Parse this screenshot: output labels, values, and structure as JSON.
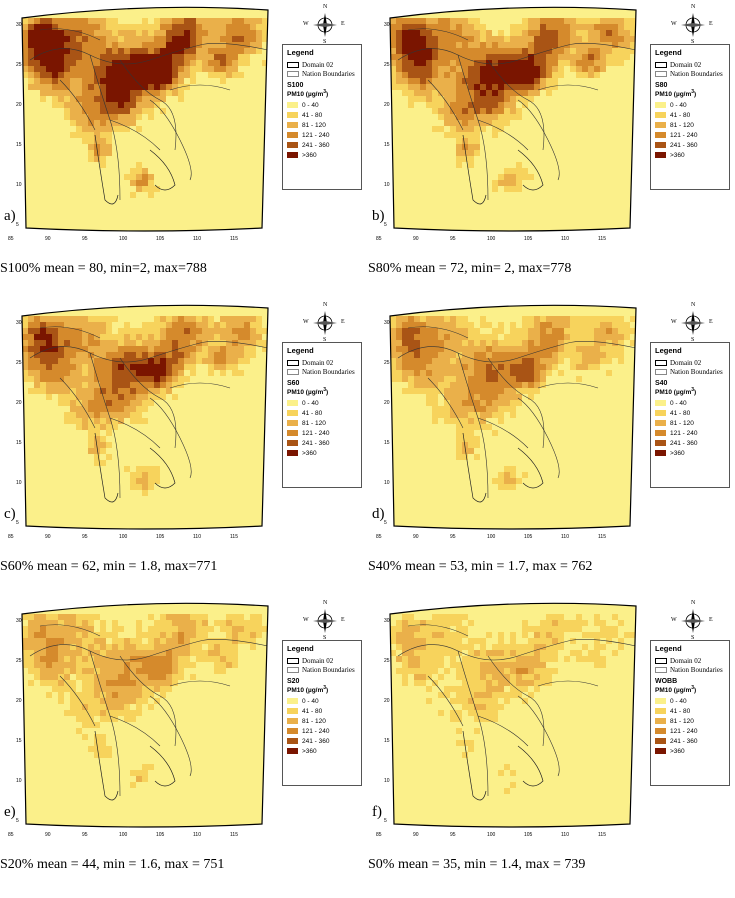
{
  "legend": {
    "title": "Legend",
    "domain_label": "Domain 02",
    "boundary_label": "Nation Boundaries",
    "unit_html_base": "PM10 (µg/m",
    "unit_sup": "3",
    "unit_close": ")",
    "classes": [
      {
        "label": "0 - 40",
        "color": "#fbf08a"
      },
      {
        "label": "41 - 80",
        "color": "#f7d35c"
      },
      {
        "label": "81 - 120",
        "color": "#eab04a"
      },
      {
        "label": "121 - 240",
        "color": "#d58a2c"
      },
      {
        "label": "241 - 360",
        "color": "#a95415"
      },
      {
        "label": ">360",
        "color": "#7a1500"
      }
    ]
  },
  "compass": {
    "n": "N",
    "s": "S",
    "e": "E",
    "w": "W"
  },
  "x_ticks": [
    "85",
    "90",
    "95",
    "100",
    "105",
    "110",
    "115"
  ],
  "y_ticks": [
    "30",
    "25",
    "20",
    "15",
    "10",
    "5"
  ],
  "panels": [
    {
      "label": "a)",
      "scenario": "S100",
      "stats": "S100% mean = 80, min=2, max=788",
      "intensity": 1.0
    },
    {
      "label": "b)",
      "scenario": "S80",
      "stats": "S80% mean = 72, min= 2, max=778",
      "intensity": 0.85
    },
    {
      "label": "c)",
      "scenario": "S60",
      "stats": "S60% mean = 62, min = 1.8, max=771",
      "intensity": 0.7
    },
    {
      "label": "d)",
      "scenario": "S40",
      "stats": "S40% mean = 53, min = 1.7, max = 762",
      "intensity": 0.55
    },
    {
      "label": "e)",
      "scenario": "S20",
      "stats": "S20% mean = 44, min = 1.6, max = 751",
      "intensity": 0.4
    },
    {
      "label": "f)",
      "scenario": "WOBB",
      "stats": "S0% mean = 35, min = 1.4, max = 739",
      "intensity": 0.25
    }
  ]
}
